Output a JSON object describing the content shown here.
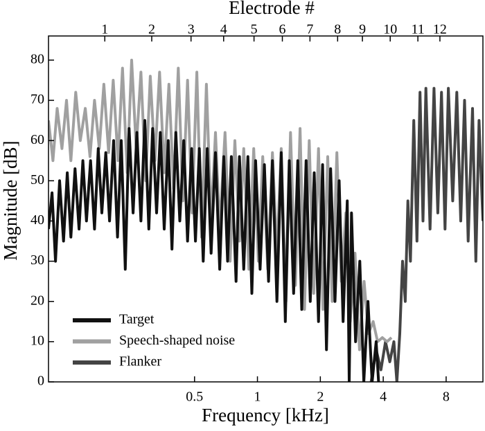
{
  "chart_data": {
    "type": "line",
    "xlabel": "Frequency [kHz]",
    "ylabel": "Magnitude [dB]",
    "x2label": "Electrode #",
    "xscale": "log",
    "xlim": [
      0.1,
      12
    ],
    "ylim": [
      0,
      86
    ],
    "xticks": [
      0.5,
      1,
      2,
      4,
      8
    ],
    "yticks": [
      0,
      10,
      20,
      30,
      40,
      50,
      60,
      70,
      80
    ],
    "x2ticks": [
      {
        "value": 0.186,
        "label": "1"
      },
      {
        "value": 0.312,
        "label": "2"
      },
      {
        "value": 0.481,
        "label": "3"
      },
      {
        "value": 0.689,
        "label": "4"
      },
      {
        "value": 0.963,
        "label": "5"
      },
      {
        "value": 1.316,
        "label": "6"
      },
      {
        "value": 1.784,
        "label": "7"
      },
      {
        "value": 2.42,
        "label": "8"
      },
      {
        "value": 3.18,
        "label": "9"
      },
      {
        "value": 4.32,
        "label": "10"
      },
      {
        "value": 5.86,
        "label": "11"
      },
      {
        "value": 7.47,
        "label": "12"
      }
    ],
    "legend": "lower left",
    "series": [
      {
        "name": "Target",
        "color": "#111111",
        "x": [
          0.1,
          0.104,
          0.108,
          0.113,
          0.118,
          0.123,
          0.128,
          0.134,
          0.14,
          0.146,
          0.152,
          0.159,
          0.166,
          0.173,
          0.18,
          0.188,
          0.196,
          0.205,
          0.214,
          0.223,
          0.233,
          0.243,
          0.254,
          0.265,
          0.277,
          0.289,
          0.302,
          0.315,
          0.329,
          0.343,
          0.358,
          0.374,
          0.39,
          0.407,
          0.425,
          0.444,
          0.463,
          0.484,
          0.505,
          0.527,
          0.55,
          0.575,
          0.6,
          0.63,
          0.66,
          0.69,
          0.72,
          0.75,
          0.79,
          0.82,
          0.86,
          0.9,
          0.94,
          0.98,
          1.03,
          1.08,
          1.13,
          1.18,
          1.24,
          1.3,
          1.36,
          1.42,
          1.49,
          1.56,
          1.63,
          1.71,
          1.79,
          1.87,
          1.96,
          2.05,
          2.14,
          2.24,
          2.35,
          2.46,
          2.57,
          2.69,
          2.75,
          2.82,
          2.95,
          3.09,
          3.23,
          3.38,
          3.54,
          3.7,
          3.8
        ],
        "values": [
          38,
          47,
          30,
          50,
          35,
          52,
          36,
          53,
          38,
          55,
          40,
          55,
          38,
          58,
          42,
          57,
          40,
          60,
          36,
          60,
          28,
          63,
          42,
          62,
          40,
          65,
          38,
          63,
          42,
          62,
          38,
          60,
          33,
          62,
          40,
          60,
          35,
          58,
          35,
          58,
          30,
          58,
          32,
          57,
          28,
          56,
          30,
          56,
          25,
          56,
          28,
          56,
          22,
          55,
          28,
          54,
          25,
          55,
          20,
          57,
          15,
          55,
          22,
          55,
          18,
          55,
          20,
          52,
          15,
          54,
          8,
          53,
          20,
          50,
          15,
          45,
          0,
          42,
          10,
          30,
          0,
          20,
          0,
          10,
          0
        ]
      },
      {
        "name": "Speech-shaped noise",
        "color": "#a0a0a0",
        "x": [
          0.1,
          0.105,
          0.11,
          0.116,
          0.122,
          0.128,
          0.135,
          0.142,
          0.15,
          0.158,
          0.166,
          0.175,
          0.184,
          0.194,
          0.204,
          0.215,
          0.226,
          0.238,
          0.25,
          0.263,
          0.277,
          0.292,
          0.307,
          0.323,
          0.34,
          0.358,
          0.377,
          0.397,
          0.418,
          0.44,
          0.463,
          0.487,
          0.513,
          0.54,
          0.57,
          0.6,
          0.63,
          0.66,
          0.7,
          0.74,
          0.78,
          0.82,
          0.86,
          0.91,
          0.96,
          1.01,
          1.06,
          1.12,
          1.18,
          1.24,
          1.3,
          1.37,
          1.44,
          1.52,
          1.6,
          1.68,
          1.77,
          1.86,
          1.96,
          2.06,
          2.17,
          2.28,
          2.4,
          2.52,
          2.65,
          2.78,
          2.93,
          3.08,
          3.24,
          3.4,
          3.58,
          3.76,
          3.96,
          4.17,
          4.38
        ],
        "values": [
          65,
          55,
          68,
          58,
          70,
          55,
          72,
          60,
          68,
          56,
          70,
          58,
          74,
          57,
          75,
          55,
          78,
          52,
          80,
          58,
          77,
          50,
          76,
          55,
          77,
          52,
          74,
          48,
          78,
          45,
          75,
          42,
          77,
          36,
          74,
          40,
          62,
          38,
          62,
          30,
          60,
          35,
          58,
          28,
          58,
          30,
          56,
          28,
          57,
          32,
          58,
          20,
          62,
          24,
          63,
          18,
          60,
          22,
          58,
          18,
          56,
          20,
          57,
          25,
          42,
          15,
          32,
          8,
          25,
          12,
          15,
          10,
          11,
          10,
          11
        ]
      },
      {
        "name": "Flanker",
        "color": "#444444",
        "x": [
          3.5,
          3.7,
          3.9,
          4.1,
          4.3,
          4.5,
          4.65,
          4.8,
          4.95,
          5.1,
          5.25,
          5.4,
          5.6,
          5.8,
          6.0,
          6.2,
          6.4,
          6.7,
          7.0,
          7.3,
          7.6,
          7.9,
          8.2,
          8.6,
          9.0,
          9.4,
          9.8,
          10.2,
          10.7,
          11.1,
          11.5,
          12.0
        ],
        "values": [
          0,
          8,
          3,
          10,
          5,
          10,
          0,
          12,
          30,
          20,
          45,
          30,
          65,
          35,
          72,
          40,
          73,
          38,
          73,
          42,
          72,
          38,
          73,
          45,
          72,
          40,
          70,
          35,
          68,
          30,
          65,
          40
        ]
      }
    ]
  }
}
